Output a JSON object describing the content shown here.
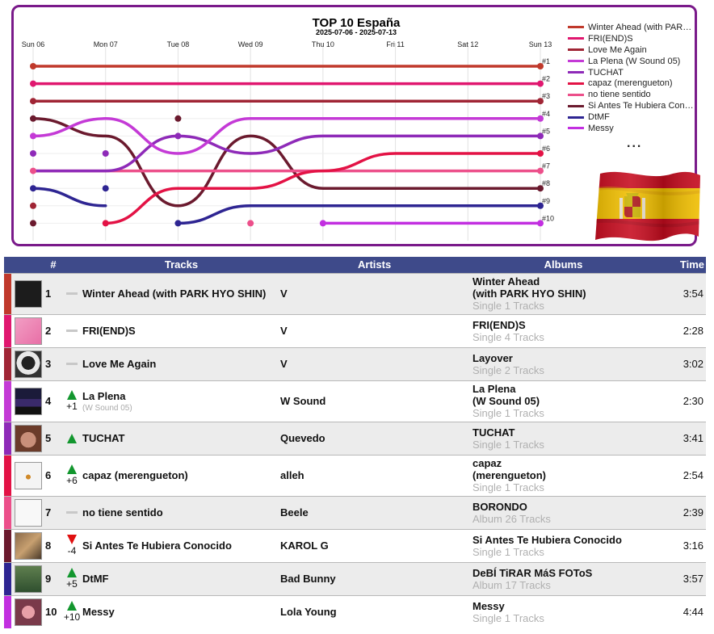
{
  "chart_data": {
    "type": "line",
    "title": "TOP 10 España",
    "subtitle": "2025-07-06 - 2025-07-13",
    "x": [
      "Sun 06",
      "Mon 07",
      "Tue 08",
      "Wed 09",
      "Thu 10",
      "Fri 11",
      "Sat 12",
      "Sun 13"
    ],
    "rank_labels": [
      "#1",
      "#2",
      "#3",
      "#4",
      "#5",
      "#6",
      "#7",
      "#8",
      "#9",
      "#10"
    ],
    "y_axis": "rank",
    "ylim": [
      1,
      10
    ],
    "y_inverted": true,
    "grid": true,
    "legend_position": "right",
    "legend_more": "...",
    "series": [
      {
        "name": "Winter Ahead (with PARK HYO SHIN)",
        "color": "#c0392b",
        "values": [
          1,
          1,
          1,
          1,
          1,
          1,
          1,
          1
        ]
      },
      {
        "name": "FRI(END)S",
        "color": "#e0176f",
        "values": [
          2,
          2,
          2,
          2,
          2,
          2,
          2,
          2
        ]
      },
      {
        "name": "Love Me Again",
        "color": "#a02535",
        "values": [
          3,
          3,
          3,
          3,
          3,
          3,
          3,
          3
        ]
      },
      {
        "name": "La Plena (W Sound 05)",
        "color": "#c43ad6",
        "values": [
          5,
          4,
          6,
          4,
          4,
          4,
          4,
          4
        ]
      },
      {
        "name": "TUCHAT",
        "color": "#8e2ab8",
        "values": [
          7,
          7,
          5,
          6,
          5,
          5,
          5,
          5
        ]
      },
      {
        "name": "capaz (merengueton)",
        "color": "#e31245",
        "values": [
          null,
          10,
          8,
          8,
          7,
          6,
          6,
          6
        ]
      },
      {
        "name": "no tiene sentido",
        "color": "#ec4f8a",
        "values": [
          7,
          7,
          7,
          7,
          7,
          7,
          7,
          7
        ]
      },
      {
        "name": "Si Antes Te Hubiera Conocido",
        "color": "#6b1a2e",
        "values": [
          4,
          5,
          9,
          5,
          8,
          8,
          8,
          8
        ]
      },
      {
        "name": "DtMF",
        "color": "#2e2592",
        "values": [
          8,
          9,
          null,
          null,
          null,
          null,
          null,
          null
        ],
        "values_b": [
          null,
          null,
          10,
          9,
          9,
          9,
          9,
          9
        ]
      },
      {
        "name": "Messy",
        "color": "#c22fe0",
        "values": [
          null,
          null,
          null,
          null,
          10,
          10,
          10,
          10
        ]
      }
    ],
    "markers": [
      {
        "x": "Sun 06",
        "rank": 1,
        "color": "#c0392b"
      },
      {
        "x": "Sun 06",
        "rank": 2,
        "color": "#e0176f"
      },
      {
        "x": "Sun 06",
        "rank": 3,
        "color": "#a02535"
      },
      {
        "x": "Sun 06",
        "rank": 4,
        "color": "#6b1a2e"
      },
      {
        "x": "Sun 06",
        "rank": 5,
        "color": "#c43ad6"
      },
      {
        "x": "Sun 06",
        "rank": 6,
        "color": "#8e2ab8"
      },
      {
        "x": "Sun 06",
        "rank": 7,
        "color": "#ec4f8a"
      },
      {
        "x": "Sun 06",
        "rank": 8,
        "color": "#2e2592"
      },
      {
        "x": "Sun 06",
        "rank": 9,
        "color": "#a02535"
      },
      {
        "x": "Sun 06",
        "rank": 10,
        "color": "#6b1a2e"
      },
      {
        "x": "Mon 07",
        "rank": 6,
        "color": "#8e2ab8"
      },
      {
        "x": "Mon 07",
        "rank": 8,
        "color": "#2e2592"
      },
      {
        "x": "Mon 07",
        "rank": 10,
        "color": "#e31245"
      },
      {
        "x": "Tue 08",
        "rank": 4,
        "color": "#6b1a2e"
      },
      {
        "x": "Tue 08",
        "rank": 5,
        "color": "#8e2ab8"
      },
      {
        "x": "Tue 08",
        "rank": 10,
        "color": "#2e2592"
      },
      {
        "x": "Wed 09",
        "rank": 10,
        "color": "#ec4f8a"
      },
      {
        "x": "Thu 10",
        "rank": 10,
        "color": "#c22fe0"
      }
    ]
  },
  "flag": {
    "country": "Spain",
    "red": "#c60b1e",
    "yellow": "#f1bf00"
  },
  "table": {
    "header_color": "#3e4a8a",
    "headers": {
      "num": "#",
      "tracks": "Tracks",
      "artists": "Artists",
      "albums": "Albums",
      "time": "Time"
    },
    "rows": [
      {
        "rank": "1",
        "move": "same",
        "delta": "",
        "title": "Winter Ahead (with PARK HYO SHIN)",
        "title_sub": "",
        "artist": "V",
        "album": "Winter Ahead (with PARK HYO SHIN)",
        "album_l1": "Winter Ahead",
        "album_l2": "(with PARK HYO SHIN)",
        "album_info": "Single 1 Tracks",
        "time": "3:54",
        "color": "#c0392b",
        "art": "dark"
      },
      {
        "rank": "2",
        "move": "same",
        "delta": "",
        "title": "FRI(END)S",
        "title_sub": "",
        "artist": "V",
        "album_l1": "FRI(END)S",
        "album_l2": "",
        "album_info": "Single 4 Tracks",
        "time": "2:28",
        "color": "#e0176f",
        "art": "pink"
      },
      {
        "rank": "3",
        "move": "same",
        "delta": "",
        "title": "Love Me Again",
        "title_sub": "",
        "artist": "V",
        "album_l1": "Layover",
        "album_l2": "",
        "album_info": "Single 2 Tracks",
        "time": "3:02",
        "color": "#a02535",
        "art": "bw"
      },
      {
        "rank": "4",
        "move": "up",
        "delta": "+1",
        "title": "La Plena",
        "title_sub": "(W Sound 05)",
        "artist": "W Sound",
        "album_l1": "La Plena",
        "album_l2": "(W Sound 05)",
        "album_info": "Single 1 Tracks",
        "time": "2:30",
        "color": "#c43ad6",
        "art": "plena"
      },
      {
        "rank": "5",
        "move": "up",
        "delta": "",
        "title": "TUCHAT",
        "title_sub": "",
        "artist": "Quevedo",
        "album_l1": "TUCHAT",
        "album_l2": "",
        "album_info": "Single 1 Tracks",
        "time": "3:41",
        "color": "#8e2ab8",
        "art": "skin"
      },
      {
        "rank": "6",
        "move": "up",
        "delta": "+6",
        "title": "capaz (merengueton)",
        "title_sub": "",
        "artist": "alleh",
        "album_l1": "capaz",
        "album_l2": "(merengueton)",
        "album_info": "Single 1 Tracks",
        "time": "2:54",
        "color": "#e31245",
        "art": "white"
      },
      {
        "rank": "7",
        "move": "same",
        "delta": "",
        "title": "no tiene sentido",
        "title_sub": "",
        "artist": "Beele",
        "album_l1": "BORONDO",
        "album_l2": "",
        "album_info": "Album 26 Tracks",
        "time": "2:39",
        "color": "#ec4f8a",
        "art": "white2"
      },
      {
        "rank": "8",
        "move": "down",
        "delta": "-4",
        "title": "Si Antes Te Hubiera Conocido",
        "title_sub": "",
        "artist": "KAROL G",
        "album_l1": "Si Antes Te Hubiera Conocido",
        "album_l2": "",
        "album_info": "Single 1 Tracks",
        "time": "3:16",
        "color": "#6b1a2e",
        "art": "people"
      },
      {
        "rank": "9",
        "move": "up",
        "delta": "+5",
        "title": "DtMF",
        "title_sub": "",
        "artist": "Bad Bunny",
        "album_l1": "DeBÍ TiRAR MáS FOToS",
        "album_l2": "",
        "album_info": "Album 17 Tracks",
        "time": "3:57",
        "color": "#2e2592",
        "art": "green"
      },
      {
        "rank": "10",
        "move": "up",
        "delta": "+10",
        "title": "Messy",
        "title_sub": "",
        "artist": "Lola Young",
        "album_l1": "Messy",
        "album_l2": "",
        "album_info": "Single 1 Tracks",
        "time": "4:44",
        "color": "#c22fe0",
        "art": "face"
      }
    ]
  }
}
